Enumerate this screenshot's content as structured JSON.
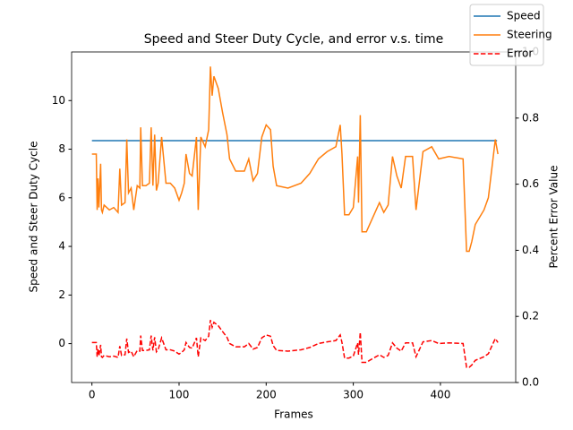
{
  "chart_data": {
    "type": "line",
    "title": "Speed and Steer Duty Cycle, and error v.s. time",
    "xlabel": "Frames",
    "ylabel": "Speed and Steer Duty Cycle",
    "y2label": "Percent Error Value",
    "xlim": [
      -23.3,
      486.4
    ],
    "xticks": [
      0,
      100,
      200,
      300,
      400
    ],
    "ylim": [
      -1.6,
      12.0
    ],
    "yticks": [
      0,
      2,
      4,
      6,
      8,
      10
    ],
    "y2lim": [
      0,
      1.0
    ],
    "y2ticks": [
      {
        "value": 0,
        "label": "0.0"
      },
      0.2,
      0.4,
      0.6,
      0.8,
      {
        "value": 1,
        "label": "1.0"
      }
    ],
    "legend": "upper right",
    "series": [
      {
        "name": "Speed",
        "color": "#1f77b4",
        "dash": false,
        "x": [
          0,
          465
        ],
        "values": [
          8.35,
          8.35
        ]
      },
      {
        "name": "Steering",
        "color": "#ff7f0e",
        "dash": false,
        "x": [
          0,
          5,
          6,
          7,
          8,
          10,
          11,
          12,
          14,
          20,
          25,
          30,
          32,
          34,
          38,
          40,
          42,
          45,
          48,
          52,
          55,
          56,
          58,
          62,
          66,
          68,
          70,
          72,
          74,
          76,
          80,
          85,
          90,
          95,
          100,
          103,
          106,
          108,
          112,
          115,
          120,
          122,
          125,
          130,
          134,
          136,
          138,
          140,
          145,
          150,
          155,
          158,
          165,
          175,
          180,
          185,
          190,
          195,
          200,
          205,
          208,
          212,
          225,
          240,
          250,
          260,
          270,
          280,
          285,
          287,
          290,
          295,
          300,
          305,
          306,
          308,
          310,
          315,
          320,
          330,
          335,
          340,
          345,
          350,
          355,
          360,
          368,
          372,
          380,
          390,
          398,
          410,
          426,
          430,
          433,
          436,
          440,
          450,
          455,
          460,
          463,
          466
        ],
        "values": [
          7.8,
          7.8,
          5.5,
          6.8,
          5.6,
          7.4,
          5.5,
          5.4,
          5.7,
          5.5,
          5.6,
          5.4,
          7.2,
          5.7,
          5.8,
          8.4,
          6.2,
          6.4,
          5.5,
          6.5,
          6.4,
          8.9,
          6.5,
          6.5,
          6.6,
          8.9,
          6.5,
          8.6,
          6.3,
          6.6,
          8.5,
          6.6,
          6.6,
          6.4,
          5.9,
          6.2,
          6.6,
          7.8,
          7.0,
          6.9,
          8.5,
          5.5,
          8.5,
          8.1,
          8.8,
          11.4,
          10.2,
          11.0,
          10.5,
          9.5,
          8.6,
          7.6,
          7.1,
          7.1,
          7.6,
          6.7,
          7.0,
          8.5,
          9.0,
          8.8,
          7.3,
          6.5,
          6.4,
          6.6,
          7.0,
          7.6,
          7.9,
          8.1,
          9.0,
          7.8,
          5.3,
          5.3,
          5.6,
          7.7,
          5.8,
          9.4,
          4.6,
          4.6,
          5.0,
          5.8,
          5.4,
          5.7,
          7.7,
          6.9,
          6.4,
          7.7,
          7.7,
          5.5,
          7.9,
          8.1,
          7.6,
          7.7,
          7.6,
          3.8,
          3.8,
          4.2,
          4.9,
          5.5,
          6.0,
          7.5,
          8.4,
          7.8
        ]
      },
      {
        "name": "Error",
        "color": "#ff0000",
        "dash": true,
        "axis": "y2",
        "x": [
          0,
          5,
          6,
          7,
          8,
          10,
          11,
          12,
          14,
          20,
          25,
          30,
          32,
          34,
          38,
          40,
          42,
          45,
          48,
          52,
          55,
          56,
          58,
          62,
          66,
          68,
          70,
          72,
          74,
          76,
          80,
          85,
          90,
          95,
          100,
          103,
          106,
          108,
          112,
          115,
          120,
          122,
          125,
          130,
          134,
          136,
          138,
          140,
          145,
          150,
          155,
          158,
          165,
          175,
          180,
          185,
          190,
          195,
          200,
          205,
          208,
          212,
          225,
          240,
          250,
          260,
          270,
          280,
          285,
          287,
          290,
          295,
          300,
          305,
          306,
          308,
          310,
          315,
          320,
          330,
          335,
          340,
          345,
          350,
          355,
          360,
          368,
          372,
          380,
          390,
          398,
          410,
          426,
          430,
          433,
          436,
          440,
          450,
          455,
          460,
          463,
          466
        ],
        "values": [
          0.121,
          0.121,
          0.078,
          0.103,
          0.08,
          0.114,
          0.078,
          0.076,
          0.082,
          0.078,
          0.08,
          0.076,
          0.11,
          0.082,
          0.084,
          0.133,
          0.091,
          0.095,
          0.078,
          0.097,
          0.095,
          0.142,
          0.097,
          0.097,
          0.099,
          0.142,
          0.097,
          0.137,
          0.093,
          0.099,
          0.135,
          0.099,
          0.099,
          0.095,
          0.086,
          0.091,
          0.099,
          0.121,
          0.106,
          0.104,
          0.135,
          0.078,
          0.135,
          0.127,
          0.14,
          0.189,
          0.167,
          0.182,
          0.172,
          0.154,
          0.137,
          0.118,
          0.108,
          0.108,
          0.118,
          0.101,
          0.106,
          0.135,
          0.144,
          0.14,
          0.112,
          0.097,
          0.095,
          0.099,
          0.106,
          0.118,
          0.123,
          0.127,
          0.144,
          0.121,
          0.074,
          0.074,
          0.08,
          0.12,
          0.084,
          0.152,
          0.061,
          0.061,
          0.069,
          0.084,
          0.076,
          0.082,
          0.12,
          0.104,
          0.095,
          0.12,
          0.12,
          0.078,
          0.123,
          0.127,
          0.118,
          0.12,
          0.118,
          0.046,
          0.046,
          0.053,
          0.067,
          0.078,
          0.087,
          0.116,
          0.133,
          0.121
        ]
      }
    ]
  }
}
